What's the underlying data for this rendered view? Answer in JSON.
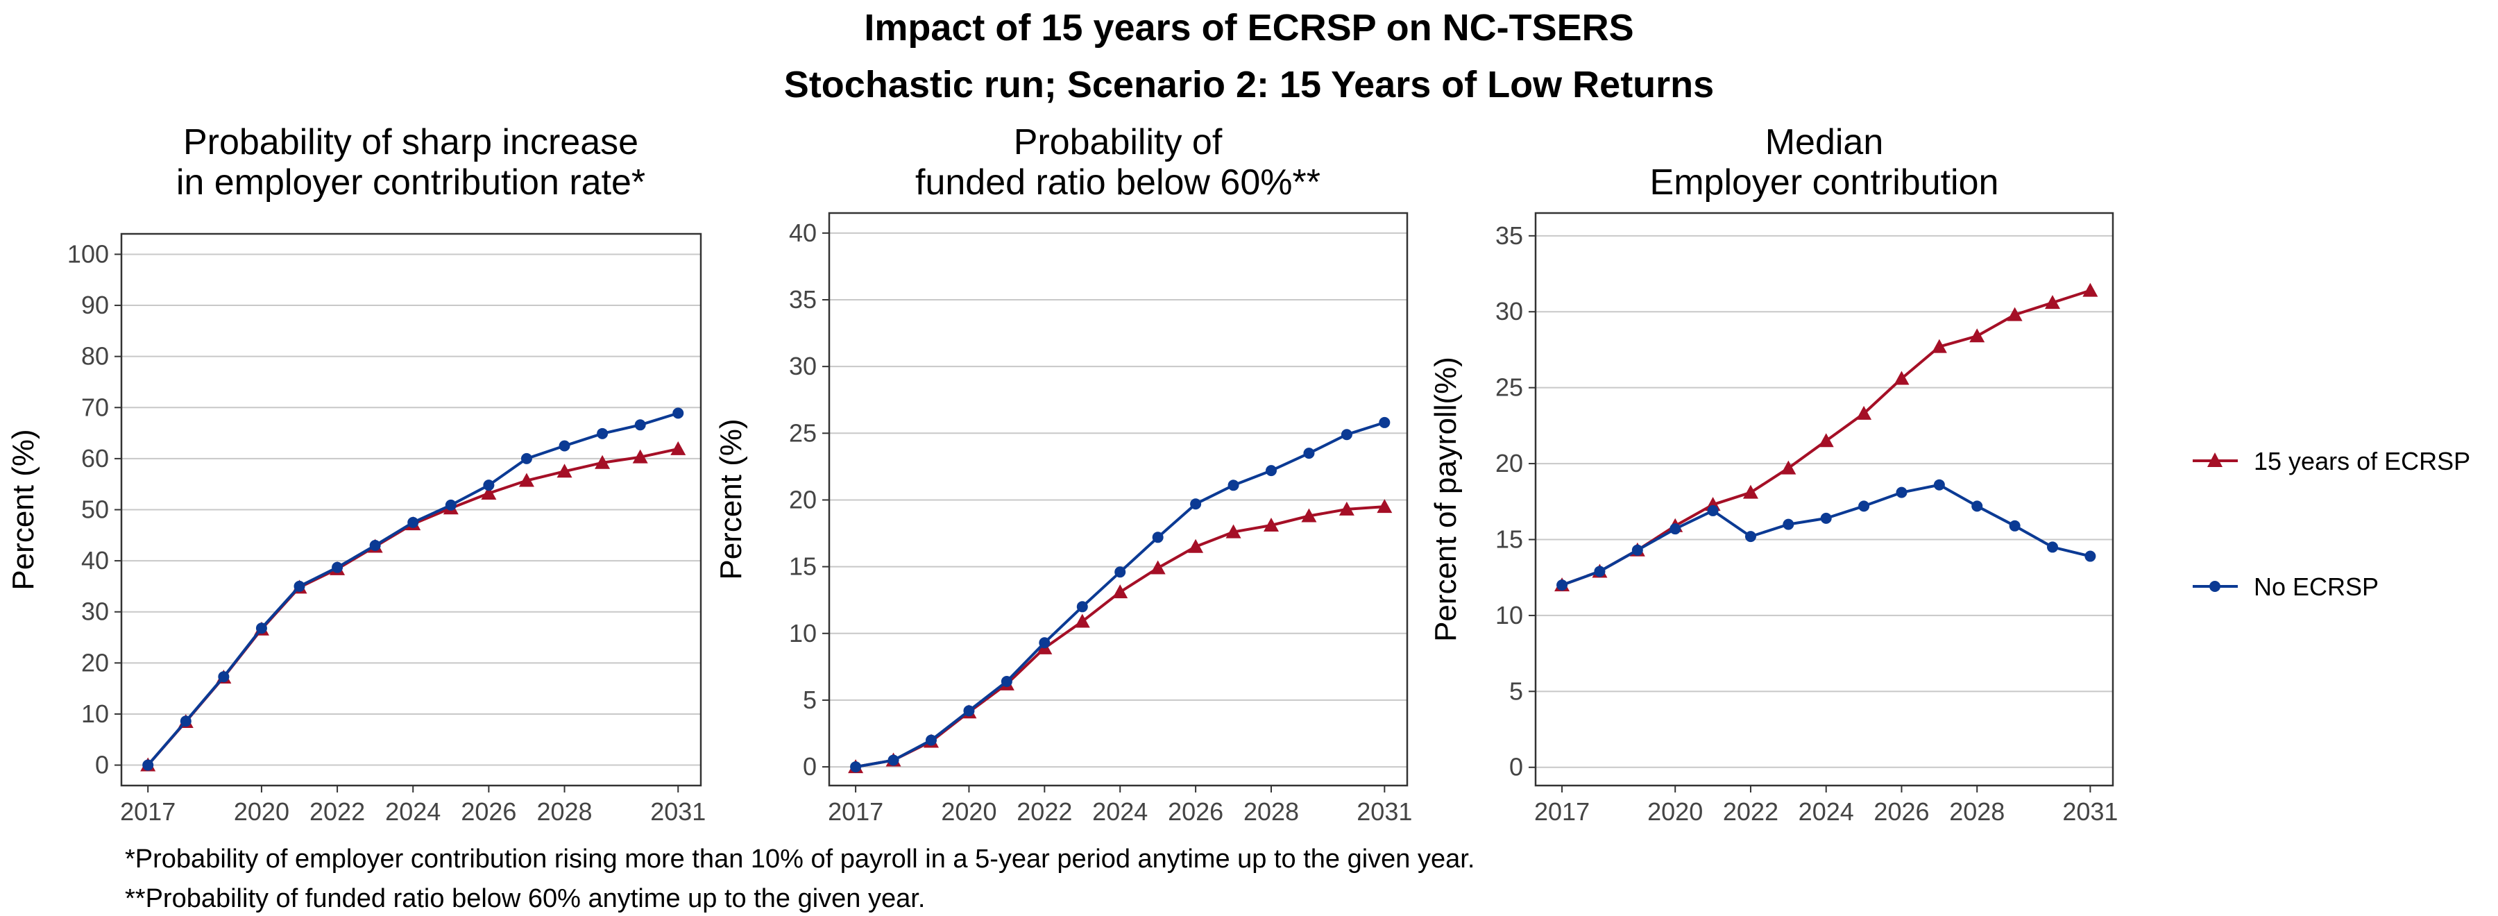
{
  "title": "Impact of 15 years of ECRSP on NC-TSERS",
  "subtitle": "Stochastic run; Scenario 2: 15 Years of Low Returns",
  "colors": {
    "ecrsp": "#A50F26",
    "no_ecrsp": "#0B3A94",
    "grid": "#C8C8C8",
    "frame": "#333333"
  },
  "legend": {
    "position": "right",
    "items": [
      {
        "label": "15 years of ECRSP",
        "color": "#A50F26",
        "marker": "triangle"
      },
      {
        "label": "No ECRSP",
        "color": "#0B3A94",
        "marker": "circle"
      }
    ]
  },
  "footnotes": [
    "*Probability of employer contribution rising more than 10% of payroll in a 5-year period anytime up to the given year.",
    "**Probability of funded ratio below 60% anytime up to the given year."
  ],
  "chart_data": [
    {
      "type": "line",
      "title_lines": [
        "Probability of sharp increase",
        "in employer contribution rate*"
      ],
      "ylabel": "Percent (%)",
      "xlabel": "",
      "xlim": [
        2016.3,
        2031.6
      ],
      "ylim": [
        -4,
        104
      ],
      "xticks": [
        2017,
        2020,
        2022,
        2024,
        2026,
        2028,
        2031
      ],
      "yticks": [
        0,
        10,
        20,
        30,
        40,
        50,
        60,
        70,
        80,
        90,
        100
      ],
      "grid": "horizontal",
      "x": [
        2017,
        2018,
        2019,
        2020,
        2021,
        2022,
        2023,
        2024,
        2025,
        2026,
        2027,
        2028,
        2029,
        2030,
        2031
      ],
      "series": [
        {
          "name": "15 years of ECRSP",
          "values": [
            0,
            8.5,
            17.2,
            26.6,
            34.8,
            38.4,
            42.8,
            47.2,
            50.3,
            53.2,
            55.7,
            57.5,
            59.2,
            60.3,
            61.9
          ]
        },
        {
          "name": "No ECRSP",
          "values": [
            0,
            8.6,
            17.3,
            26.8,
            35.0,
            38.7,
            43.0,
            47.5,
            50.9,
            54.8,
            60.0,
            62.5,
            64.9,
            66.6,
            68.9
          ]
        }
      ]
    },
    {
      "type": "line",
      "title_lines": [
        "Probability of",
        "funded ratio below 60%**"
      ],
      "ylabel": "Percent (%)",
      "xlabel": "",
      "xlim": [
        2016.3,
        2031.6
      ],
      "ylim": [
        -1.4,
        41.5
      ],
      "xticks": [
        2017,
        2020,
        2022,
        2024,
        2026,
        2028,
        2031
      ],
      "yticks": [
        0,
        5,
        10,
        15,
        20,
        25,
        30,
        35,
        40
      ],
      "grid": "horizontal",
      "x": [
        2017,
        2018,
        2019,
        2020,
        2021,
        2022,
        2023,
        2024,
        2025,
        2026,
        2027,
        2028,
        2029,
        2030,
        2031
      ],
      "series": [
        {
          "name": "15 years of ECRSP",
          "values": [
            0,
            0.5,
            1.9,
            4.1,
            6.2,
            8.9,
            10.9,
            13.1,
            14.9,
            16.5,
            17.6,
            18.1,
            18.8,
            19.3,
            19.5
          ]
        },
        {
          "name": "No ECRSP",
          "values": [
            0,
            0.5,
            2.0,
            4.2,
            6.4,
            9.3,
            12.0,
            14.6,
            17.2,
            19.7,
            21.1,
            22.2,
            23.5,
            24.9,
            25.8
          ]
        }
      ]
    },
    {
      "type": "line",
      "title_lines": [
        "Median",
        "Employer contribution"
      ],
      "ylabel": "Percent of payroll(%)",
      "xlabel": "",
      "xlim": [
        2016.3,
        2031.6
      ],
      "ylim": [
        -1.2,
        36.5
      ],
      "xticks": [
        2017,
        2020,
        2022,
        2024,
        2026,
        2028,
        2031
      ],
      "yticks": [
        0,
        5,
        10,
        15,
        20,
        25,
        30,
        35
      ],
      "grid": "horizontal",
      "x": [
        2017,
        2018,
        2019,
        2020,
        2021,
        2022,
        2023,
        2024,
        2025,
        2026,
        2027,
        2028,
        2029,
        2030,
        2031
      ],
      "series": [
        {
          "name": "15 years of ECRSP",
          "values": [
            12.0,
            12.9,
            14.3,
            15.9,
            17.3,
            18.1,
            19.7,
            21.5,
            23.3,
            25.6,
            27.7,
            28.4,
            29.8,
            30.6,
            31.4
          ]
        },
        {
          "name": "No ECRSP",
          "values": [
            12.0,
            12.9,
            14.3,
            15.7,
            16.9,
            15.2,
            16.0,
            16.4,
            17.2,
            18.1,
            18.6,
            17.2,
            15.9,
            14.5,
            13.9
          ]
        }
      ]
    }
  ]
}
